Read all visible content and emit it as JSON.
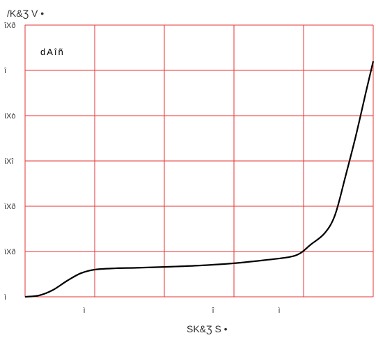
{
  "chart_data": {
    "type": "line",
    "title": "",
    "ylabel": "/K&Ʒ V •",
    "xlabel": "SK&Ʒ S •",
    "annotation": "dAîñ",
    "y_tick_labels": [
      "îXð",
      "î",
      "íXò",
      "íXî",
      "ìXð",
      "ìXð",
      "ì"
    ],
    "x_tick_labels": [
      "ì",
      "î",
      "ì"
    ],
    "grid": true,
    "xlim": [
      0,
      5
    ],
    "ylim": [
      0,
      6
    ],
    "series": [
      {
        "x": [
          0,
          0.2,
          0.4,
          0.6,
          0.8,
          1.0,
          1.3,
          1.6,
          2.0,
          2.5,
          3.0,
          3.5,
          3.8,
          3.95,
          4.1,
          4.3,
          4.45,
          4.6,
          4.75,
          4.9,
          5.0
        ],
        "y": [
          0.0,
          0.03,
          0.15,
          0.35,
          0.52,
          0.6,
          0.63,
          0.64,
          0.66,
          0.69,
          0.74,
          0.82,
          0.88,
          0.96,
          1.15,
          1.4,
          1.8,
          2.65,
          3.55,
          4.55,
          5.2
        ],
        "color": "#000000"
      }
    ],
    "colors": {
      "grid": "#e53333",
      "line": "#000000",
      "text": "#333333"
    }
  }
}
